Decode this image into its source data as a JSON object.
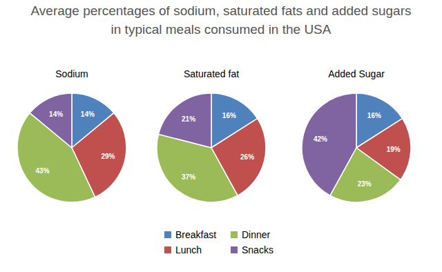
{
  "title": "Average percentages of sodium, saturated fats and added sugars\nin typical meals consumed in the USA",
  "chart_data": [
    {
      "type": "pie",
      "title": "Sodium",
      "categories": [
        "Breakfast",
        "Lunch",
        "Dinner",
        "Snacks"
      ],
      "values": [
        14,
        29,
        43,
        14
      ],
      "value_labels": [
        "14%",
        "29%",
        "43%",
        "14%"
      ],
      "colors": [
        "#4f81bd",
        "#c0504d",
        "#9bbb59",
        "#8064a2"
      ],
      "data_labels": true,
      "legend": "bottom"
    },
    {
      "type": "pie",
      "title": "Saturated fat",
      "categories": [
        "Breakfast",
        "Lunch",
        "Dinner",
        "Snacks"
      ],
      "values": [
        16,
        26,
        37,
        21
      ],
      "value_labels": [
        "16%",
        "26%",
        "37%",
        "21%"
      ],
      "colors": [
        "#4f81bd",
        "#c0504d",
        "#9bbb59",
        "#8064a2"
      ],
      "data_labels": true
    },
    {
      "type": "pie",
      "title": "Added Sugar",
      "categories": [
        "Breakfast",
        "Lunch",
        "Dinner",
        "Snacks"
      ],
      "values": [
        16,
        19,
        23,
        42
      ],
      "value_labels": [
        "16%",
        "19%",
        "23%",
        "42%"
      ],
      "colors": [
        "#4f81bd",
        "#c0504d",
        "#9bbb59",
        "#8064a2"
      ],
      "data_labels": true
    }
  ]
}
